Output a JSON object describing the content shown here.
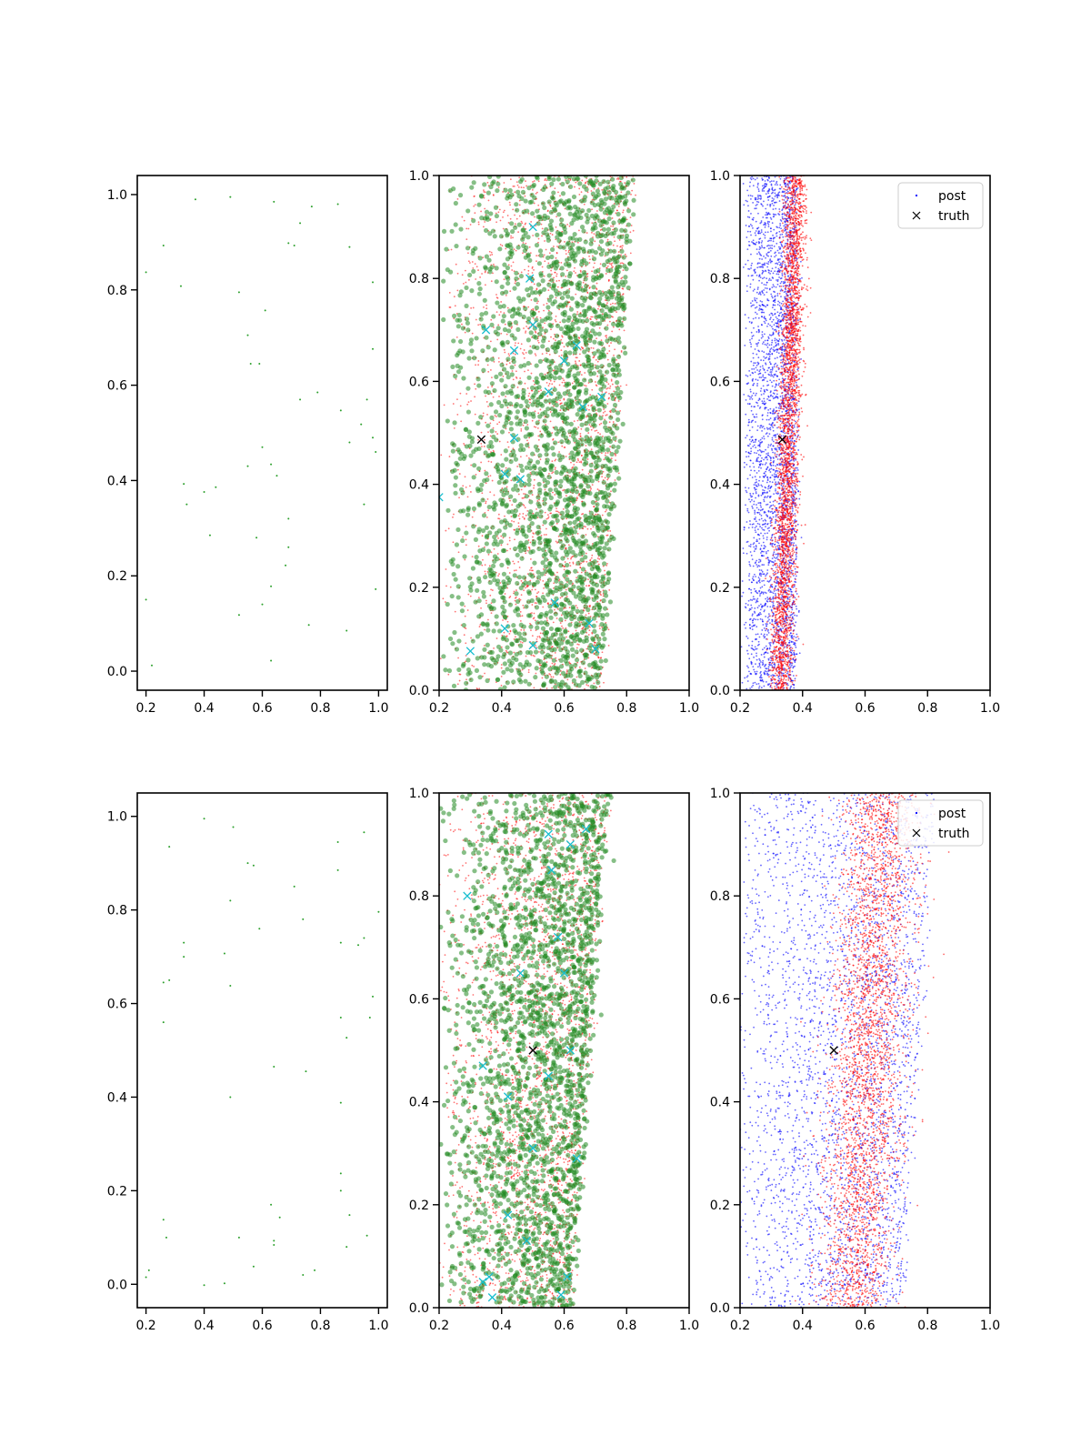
{
  "chart_data": [
    {
      "type": "scatter",
      "panel": "row1-col1",
      "xlim": [
        0.17,
        1.03
      ],
      "ylim": [
        -0.04,
        1.04
      ],
      "xticks": [
        "0.2",
        "0.4",
        "0.6",
        "0.8",
        "1.0"
      ],
      "yticks": [
        "0.0",
        "0.2",
        "0.4",
        "0.6",
        "0.8",
        "1.0"
      ],
      "grid": false,
      "colors": {
        "points": "#2ca02c"
      },
      "series": [
        {
          "points": [
            [
              0.37,
              0.99
            ],
            [
              0.49,
              0.995
            ],
            [
              0.64,
              0.985
            ],
            [
              0.77,
              0.975
            ],
            [
              0.86,
              0.98
            ],
            [
              0.26,
              0.893
            ],
            [
              0.69,
              0.898
            ],
            [
              0.71,
              0.893
            ],
            [
              0.9,
              0.89
            ],
            [
              0.2,
              0.837
            ],
            [
              0.32,
              0.808
            ],
            [
              0.52,
              0.795
            ],
            [
              0.61,
              0.757
            ],
            [
              0.98,
              0.816
            ],
            [
              0.73,
              0.94
            ],
            [
              0.55,
              0.705
            ],
            [
              0.56,
              0.645
            ],
            [
              0.59,
              0.645
            ],
            [
              0.98,
              0.676
            ],
            [
              0.73,
              0.57
            ],
            [
              0.79,
              0.585
            ],
            [
              0.87,
              0.547
            ],
            [
              0.96,
              0.57
            ],
            [
              0.9,
              0.48
            ],
            [
              0.94,
              0.518
            ],
            [
              0.98,
              0.49
            ],
            [
              0.99,
              0.46
            ],
            [
              0.6,
              0.47
            ],
            [
              0.55,
              0.43
            ],
            [
              0.63,
              0.434
            ],
            [
              0.65,
              0.41
            ],
            [
              0.33,
              0.393
            ],
            [
              0.4,
              0.376
            ],
            [
              0.44,
              0.386
            ],
            [
              0.34,
              0.35
            ],
            [
              0.95,
              0.35
            ],
            [
              0.69,
              0.32
            ],
            [
              0.42,
              0.285
            ],
            [
              0.58,
              0.28
            ],
            [
              0.69,
              0.26
            ],
            [
              0.68,
              0.222
            ],
            [
              0.99,
              0.172
            ],
            [
              0.2,
              0.15
            ],
            [
              0.63,
              0.178
            ],
            [
              0.6,
              0.14
            ],
            [
              0.52,
              0.118
            ],
            [
              0.76,
              0.097
            ],
            [
              0.89,
              0.085
            ],
            [
              0.22,
              0.012
            ],
            [
              0.63,
              0.022
            ]
          ]
        }
      ]
    },
    {
      "type": "scatter",
      "panel": "row1-col2",
      "xlim": [
        0.2,
        1.0
      ],
      "ylim": [
        0.0,
        1.0
      ],
      "xticks": [
        "0.2",
        "0.4",
        "0.6",
        "0.8",
        "1.0"
      ],
      "yticks": [
        "0.0",
        "0.2",
        "0.4",
        "0.6",
        "0.8",
        "1.0"
      ],
      "grid": false,
      "colors": {
        "green": "#228b22",
        "red": "#ff0000",
        "cyan": "#17becf",
        "truth": "#000000"
      },
      "cloud": {
        "x_left": 0.2,
        "x_right_bottom": 0.72,
        "x_right_top": 0.82,
        "peak": 0.65
      },
      "truth": [
        0.335,
        0.487
      ],
      "cyan_x": [
        [
          0.5,
          0.9
        ],
        [
          0.49,
          0.8
        ],
        [
          0.35,
          0.7
        ],
        [
          0.5,
          0.71
        ],
        [
          0.44,
          0.66
        ],
        [
          0.6,
          0.64
        ],
        [
          0.55,
          0.58
        ],
        [
          0.72,
          0.57
        ],
        [
          0.41,
          0.42
        ],
        [
          0.46,
          0.41
        ],
        [
          0.66,
          0.55
        ],
        [
          0.3,
          0.076
        ],
        [
          0.41,
          0.12
        ],
        [
          0.5,
          0.087
        ],
        [
          0.68,
          0.13
        ],
        [
          0.7,
          0.08
        ],
        [
          0.57,
          0.17
        ],
        [
          0.44,
          0.49
        ],
        [
          0.2,
          0.375
        ],
        [
          0.64,
          0.67
        ]
      ]
    },
    {
      "type": "scatter",
      "panel": "row1-col3",
      "xlim": [
        0.2,
        1.0
      ],
      "ylim": [
        0.0,
        1.0
      ],
      "xticks": [
        "0.2",
        "0.4",
        "0.6",
        "0.8",
        "1.0"
      ],
      "yticks": [
        "0.0",
        "0.2",
        "0.4",
        "0.6",
        "0.8",
        "1.0"
      ],
      "grid": false,
      "legend": {
        "position": "top-right",
        "entries": [
          {
            "label": "post",
            "marker": "dot"
          },
          {
            "label": "truth",
            "marker": "x"
          }
        ]
      },
      "colors": {
        "blue": "#0000ff",
        "red": "#ff0000",
        "truth": "#000000"
      },
      "blue_band": {
        "x_left": 0.22,
        "x_right": 0.38
      },
      "red_band": {
        "x_bottom": 0.33,
        "x_top": 0.38,
        "spread": 0.018
      },
      "truth": [
        0.335,
        0.487
      ]
    },
    {
      "type": "scatter",
      "panel": "row2-col1",
      "xlim": [
        0.17,
        1.03
      ],
      "ylim": [
        -0.05,
        1.05
      ],
      "xticks": [
        "0.2",
        "0.4",
        "0.6",
        "0.8",
        "1.0"
      ],
      "yticks": [
        "0.0",
        "0.2",
        "0.4",
        "0.6",
        "0.8",
        "1.0"
      ],
      "grid": false,
      "colors": {
        "points": "#2ca02c"
      },
      "series": [
        {
          "points": [
            [
              0.4,
              0.995
            ],
            [
              0.5,
              0.977
            ],
            [
              0.28,
              0.935
            ],
            [
              0.55,
              0.9
            ],
            [
              0.57,
              0.895
            ],
            [
              0.86,
              0.945
            ],
            [
              0.95,
              0.966
            ],
            [
              0.86,
              0.885
            ],
            [
              0.71,
              0.85
            ],
            [
              0.49,
              0.82
            ],
            [
              0.74,
              0.78
            ],
            [
              0.59,
              0.76
            ],
            [
              1.0,
              0.796
            ],
            [
              0.33,
              0.73
            ],
            [
              0.33,
              0.7
            ],
            [
              0.47,
              0.707
            ],
            [
              0.26,
              0.645
            ],
            [
              0.28,
              0.65
            ],
            [
              0.49,
              0.638
            ],
            [
              0.87,
              0.73
            ],
            [
              0.93,
              0.725
            ],
            [
              0.95,
              0.74
            ],
            [
              0.98,
              0.615
            ],
            [
              0.26,
              0.56
            ],
            [
              0.87,
              0.57
            ],
            [
              0.97,
              0.57
            ],
            [
              0.89,
              0.527
            ],
            [
              0.64,
              0.465
            ],
            [
              0.75,
              0.455
            ],
            [
              0.49,
              0.4
            ],
            [
              0.87,
              0.388
            ],
            [
              0.87,
              0.237
            ],
            [
              0.87,
              0.2
            ],
            [
              0.63,
              0.17
            ],
            [
              0.26,
              0.138
            ],
            [
              0.66,
              0.143
            ],
            [
              0.9,
              0.148
            ],
            [
              0.27,
              0.1
            ],
            [
              0.52,
              0.1
            ],
            [
              0.64,
              0.084
            ],
            [
              0.64,
              0.093
            ],
            [
              0.89,
              0.08
            ],
            [
              0.96,
              0.104
            ],
            [
              0.57,
              0.038
            ],
            [
              0.21,
              0.03
            ],
            [
              0.2,
              0.015
            ],
            [
              0.74,
              0.02
            ],
            [
              0.78,
              0.03
            ],
            [
              0.4,
              -0.002
            ],
            [
              0.47,
              0.002
            ]
          ]
        }
      ]
    },
    {
      "type": "scatter",
      "panel": "row2-col2",
      "xlim": [
        0.2,
        1.0
      ],
      "ylim": [
        0.0,
        1.0
      ],
      "xticks": [
        "0.2",
        "0.4",
        "0.6",
        "0.8",
        "1.0"
      ],
      "yticks": [
        "0.0",
        "0.2",
        "0.4",
        "0.6",
        "0.8",
        "1.0"
      ],
      "grid": false,
      "colors": {
        "green": "#228b22",
        "red": "#ff0000",
        "cyan": "#17becf",
        "truth": "#000000"
      },
      "cloud": {
        "x_left": 0.2,
        "x_right_bottom": 0.62,
        "x_right_top": 0.74,
        "peak": 0.58
      },
      "truth": [
        0.5,
        0.5
      ],
      "cyan_x": [
        [
          0.29,
          0.8
        ],
        [
          0.55,
          0.92
        ],
        [
          0.62,
          0.9
        ],
        [
          0.67,
          0.93
        ],
        [
          0.56,
          0.85
        ],
        [
          0.58,
          0.72
        ],
        [
          0.46,
          0.65
        ],
        [
          0.6,
          0.65
        ],
        [
          0.34,
          0.47
        ],
        [
          0.42,
          0.41
        ],
        [
          0.62,
          0.5
        ],
        [
          0.55,
          0.45
        ],
        [
          0.5,
          0.31
        ],
        [
          0.42,
          0.18
        ],
        [
          0.36,
          0.06
        ],
        [
          0.37,
          0.02
        ],
        [
          0.34,
          0.05
        ],
        [
          0.61,
          0.06
        ],
        [
          0.59,
          0.025
        ],
        [
          0.48,
          0.13
        ],
        [
          0.64,
          0.29
        ]
      ]
    },
    {
      "type": "scatter",
      "panel": "row2-col3",
      "xlim": [
        0.2,
        1.0
      ],
      "ylim": [
        0.0,
        1.0
      ],
      "xticks": [
        "0.2",
        "0.4",
        "0.6",
        "0.8",
        "1.0"
      ],
      "yticks": [
        "0.0",
        "0.2",
        "0.4",
        "0.6",
        "0.8",
        "1.0"
      ],
      "grid": false,
      "legend": {
        "position": "top-right",
        "entries": [
          {
            "label": "post",
            "marker": "dot"
          },
          {
            "label": "truth",
            "marker": "x"
          }
        ]
      },
      "colors": {
        "blue": "#0000ff",
        "red": "#ff0000",
        "truth": "#000000"
      },
      "blue_band": {
        "x_left": 0.2,
        "x_right_bottom": 0.72,
        "x_right_top": 0.82
      },
      "red_band": {
        "x_bottom": 0.56,
        "x_top": 0.66,
        "spread": 0.06
      },
      "truth": [
        0.5,
        0.5
      ]
    }
  ]
}
